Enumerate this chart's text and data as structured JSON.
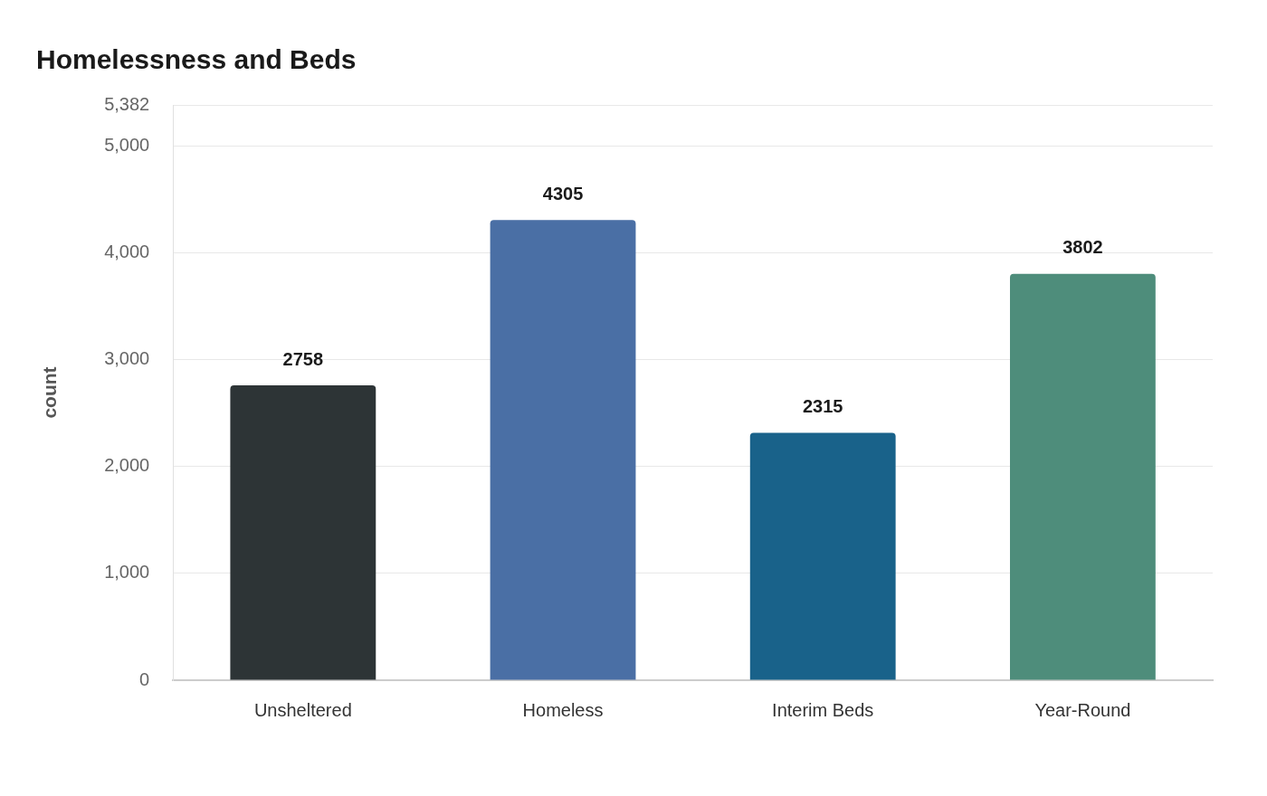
{
  "chart_data": {
    "type": "bar",
    "title": "Homelessness and Beds",
    "ylabel": "count",
    "categories": [
      "Unsheltered",
      "Homeless",
      "Interim Beds",
      "Year-Round"
    ],
    "values": [
      2758,
      4305,
      2315,
      3802
    ],
    "colors": [
      "#2d3436",
      "#4a6fa5",
      "#19628a",
      "#4e8d7b"
    ],
    "ylim": [
      0,
      5382
    ],
    "yticks": [
      {
        "value": 0,
        "label": "0"
      },
      {
        "value": 1000,
        "label": "1,000"
      },
      {
        "value": 2000,
        "label": "2,000"
      },
      {
        "value": 3000,
        "label": "3,000"
      },
      {
        "value": 4000,
        "label": "4,000"
      },
      {
        "value": 5000,
        "label": "5,000"
      },
      {
        "value": 5382,
        "label": "5,382"
      }
    ],
    "grid": "y",
    "data_labels": true,
    "legend": false
  }
}
